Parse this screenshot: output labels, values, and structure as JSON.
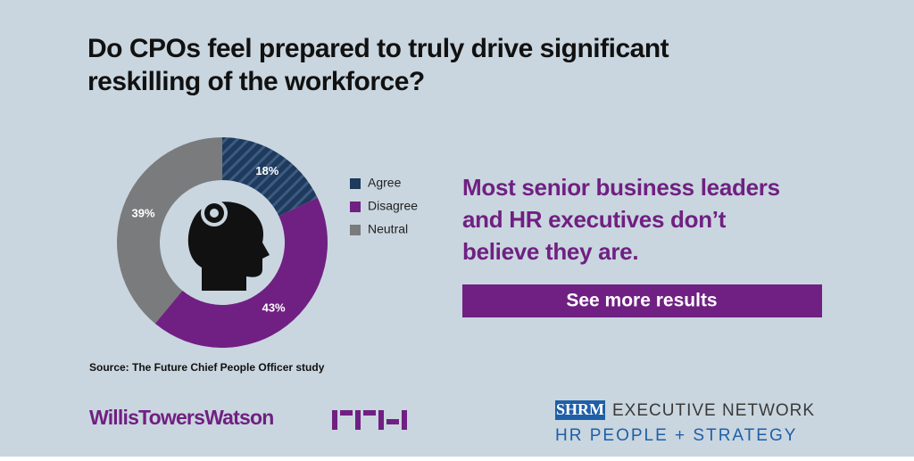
{
  "chart_data": {
    "type": "donut",
    "title": "Do CPOs feel prepared to truly drive significant reskilling of the workforce?",
    "categories": [
      "Agree",
      "Disagree",
      "Neutral"
    ],
    "values": [
      18,
      43,
      39
    ],
    "value_labels": [
      "18%",
      "43%",
      "39%"
    ],
    "colors": [
      "#1e3a5c",
      "#702082",
      "#7a7b7d"
    ],
    "source": "Source: The Future Chief People Officer study"
  },
  "headline": "Most senior business leaders and HR executives don’t believe they are.",
  "button": "See more results",
  "logos": {
    "wtw": "WillisTowersWatson",
    "shrm": "SHRM",
    "network": "EXECUTIVE NETWORK",
    "hrps": "HR PEOPLE + STRATEGY"
  }
}
